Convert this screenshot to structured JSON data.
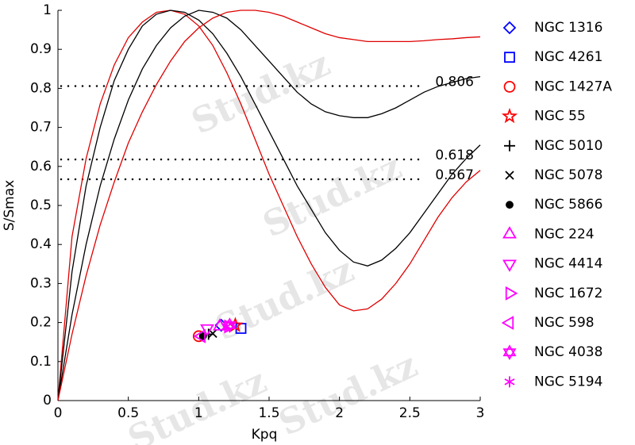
{
  "chart_data": {
    "type": "line",
    "watermark": "Stud.kz",
    "xlabel": "Kpq",
    "ylabel": "S/Smax",
    "xlim": [
      0,
      3
    ],
    "ylim": [
      0,
      1
    ],
    "xticks": [
      0,
      0.5,
      1,
      1.5,
      2,
      2.5,
      3
    ],
    "yticks": [
      0,
      0.1,
      0.2,
      0.3,
      0.4,
      0.5,
      0.6,
      0.7,
      0.8,
      0.9,
      1
    ],
    "grid": false,
    "hlines": [
      0.806,
      0.618,
      0.567
    ],
    "x": [
      0,
      0.1,
      0.2,
      0.3,
      0.4,
      0.5,
      0.6,
      0.7,
      0.8,
      0.9,
      1.0,
      1.1,
      1.2,
      1.3,
      1.4,
      1.5,
      1.6,
      1.7,
      1.8,
      1.9,
      2.0,
      2.1,
      2.2,
      2.3,
      2.4,
      2.5,
      2.6,
      2.7,
      2.8,
      2.9,
      3.0
    ],
    "series": [
      {
        "type": "line",
        "color": "#e00000",
        "values": [
          0,
          0.42,
          0.62,
          0.76,
          0.86,
          0.93,
          0.97,
          0.995,
          1.0,
          0.99,
          0.96,
          0.91,
          0.84,
          0.76,
          0.67,
          0.58,
          0.5,
          0.42,
          0.35,
          0.29,
          0.245,
          0.23,
          0.235,
          0.26,
          0.3,
          0.35,
          0.41,
          0.47,
          0.52,
          0.56,
          0.59
        ]
      },
      {
        "type": "line",
        "color": "#000000",
        "values": [
          0,
          0.33,
          0.55,
          0.7,
          0.82,
          0.9,
          0.96,
          0.99,
          1.0,
          0.995,
          0.975,
          0.94,
          0.89,
          0.83,
          0.76,
          0.69,
          0.62,
          0.55,
          0.49,
          0.43,
          0.385,
          0.355,
          0.345,
          0.36,
          0.39,
          0.43,
          0.48,
          0.53,
          0.58,
          0.62,
          0.655
        ]
      },
      {
        "type": "line",
        "color": "#000000",
        "values": [
          0,
          0.22,
          0.4,
          0.55,
          0.67,
          0.77,
          0.85,
          0.91,
          0.955,
          0.985,
          1.0,
          0.995,
          0.98,
          0.95,
          0.91,
          0.87,
          0.83,
          0.79,
          0.76,
          0.74,
          0.73,
          0.725,
          0.725,
          0.735,
          0.75,
          0.77,
          0.79,
          0.805,
          0.815,
          0.825,
          0.83
        ]
      },
      {
        "type": "line",
        "color": "#e00000",
        "values": [
          0,
          0.17,
          0.32,
          0.45,
          0.56,
          0.66,
          0.74,
          0.81,
          0.87,
          0.92,
          0.955,
          0.98,
          0.995,
          1.0,
          1.0,
          0.995,
          0.985,
          0.97,
          0.955,
          0.94,
          0.93,
          0.925,
          0.92,
          0.92,
          0.92,
          0.92,
          0.922,
          0.925,
          0.927,
          0.93,
          0.932
        ]
      },
      {
        "type": "scatter",
        "name": "NGC 1316",
        "marker": "diamond",
        "color": "#0000ff",
        "x": [
          1.16
        ],
        "values": [
          0.193
        ]
      },
      {
        "type": "scatter",
        "name": "NGC 4261",
        "marker": "square",
        "color": "#0000ff",
        "x": [
          1.3
        ],
        "values": [
          0.185
        ]
      },
      {
        "type": "scatter",
        "name": "NGC 1427A",
        "marker": "circle",
        "color": "#ff0000",
        "x": [
          1.0
        ],
        "values": [
          0.165
        ]
      },
      {
        "type": "scatter",
        "name": "NGC 55",
        "marker": "pentagram",
        "color": "#ff0000",
        "x": [
          1.26
        ],
        "values": [
          0.193
        ]
      },
      {
        "type": "scatter",
        "name": "NGC 5010",
        "marker": "plus",
        "color": "#000000",
        "x": [
          1.07
        ],
        "values": [
          0.17
        ]
      },
      {
        "type": "scatter",
        "name": "NGC 5078",
        "marker": "x",
        "color": "#000000",
        "x": [
          1.1
        ],
        "values": [
          0.172
        ]
      },
      {
        "type": "scatter",
        "name": "NGC 5866",
        "marker": "dot",
        "color": "#000000",
        "x": [
          1.03
        ],
        "values": [
          0.165
        ]
      },
      {
        "type": "scatter",
        "name": "NGC 224",
        "marker": "triangle-up",
        "color": "#ff00ff",
        "x": [
          1.15
        ],
        "values": [
          0.19
        ]
      },
      {
        "type": "scatter",
        "name": "NGC 4414",
        "marker": "triangle-down",
        "color": "#ff00ff",
        "x": [
          1.06
        ],
        "values": [
          0.185
        ]
      },
      {
        "type": "scatter",
        "name": "NGC 1672",
        "marker": "triangle-right",
        "color": "#ff00ff",
        "x": [
          1.21
        ],
        "values": [
          0.19
        ]
      },
      {
        "type": "scatter",
        "name": "NGC 598",
        "marker": "triangle-left",
        "color": "#ff00ff",
        "x": [
          1.02
        ],
        "values": [
          0.165
        ]
      },
      {
        "type": "scatter",
        "name": "NGC 4038",
        "marker": "hexagram",
        "color": "#ff00ff",
        "x": [
          1.22
        ],
        "values": [
          0.193
        ]
      },
      {
        "type": "scatter",
        "name": "NGC 5194",
        "marker": "asterisk",
        "color": "#ff00ff",
        "x": [
          1.2
        ],
        "values": [
          0.19
        ]
      }
    ]
  }
}
